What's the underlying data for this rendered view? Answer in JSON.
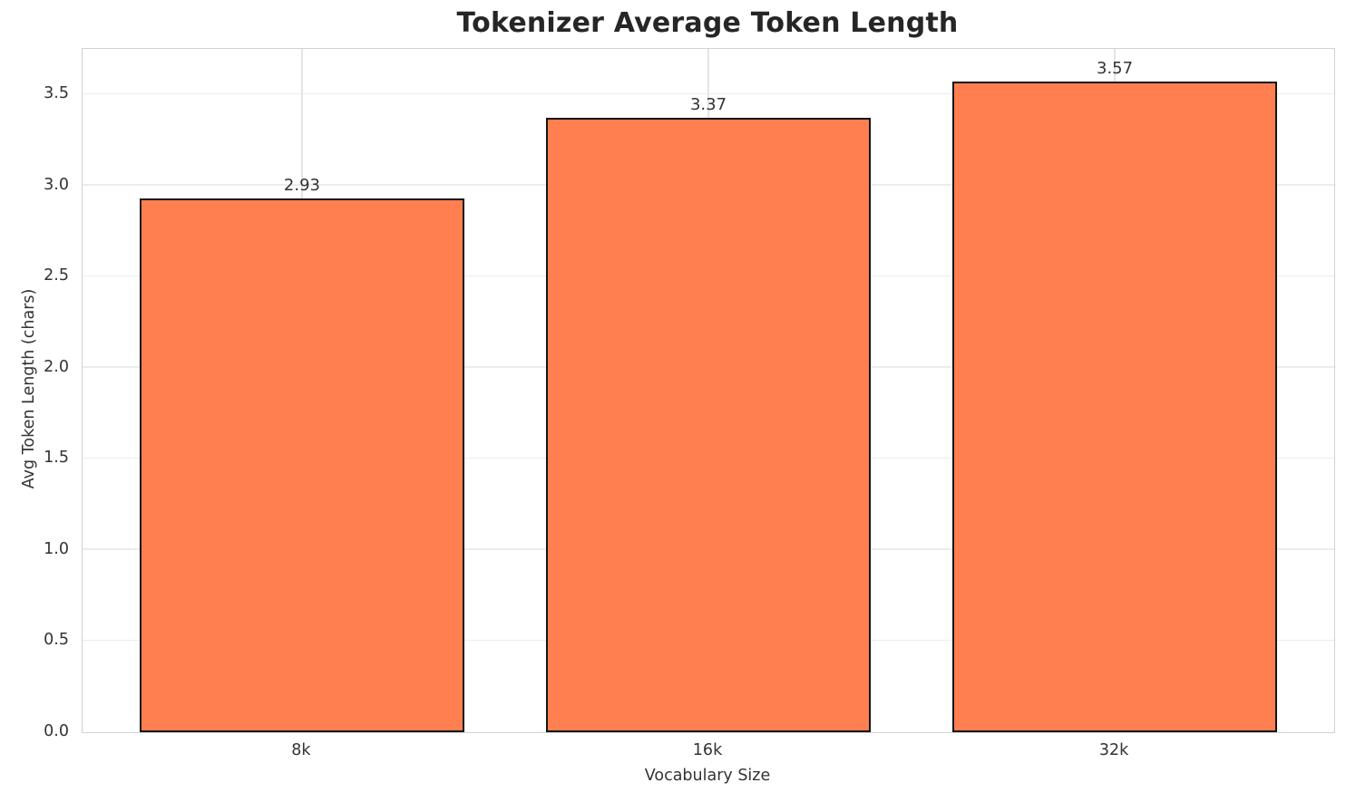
{
  "chart_data": {
    "type": "bar",
    "title": "Tokenizer Average Token Length",
    "xlabel": "Vocabulary Size",
    "ylabel": "Avg Token Length (chars)",
    "categories": [
      "8k",
      "16k",
      "32k"
    ],
    "values": [
      2.93,
      3.37,
      3.57
    ],
    "value_labels": [
      "2.93",
      "3.37",
      "3.57"
    ],
    "yticks": [
      0.0,
      0.5,
      1.0,
      1.5,
      2.0,
      2.5,
      3.0,
      3.5
    ],
    "ytick_labels": [
      "0.0",
      "0.5",
      "1.0",
      "1.5",
      "2.0",
      "2.5",
      "3.0",
      "3.5"
    ],
    "ylim": [
      0,
      3.7485
    ],
    "xlim": [
      -0.54,
      2.54
    ],
    "bar_width_units": 0.8,
    "grid": true,
    "legend": "none",
    "colors": {
      "bar_fill": "#FF7F50",
      "bar_edge": "#141414",
      "grid_h": "#ececec",
      "grid_v": "#e4e4e4",
      "spine": "#d2d2d2",
      "text": "#333333",
      "title": "#262626",
      "background": "#ffffff"
    }
  }
}
